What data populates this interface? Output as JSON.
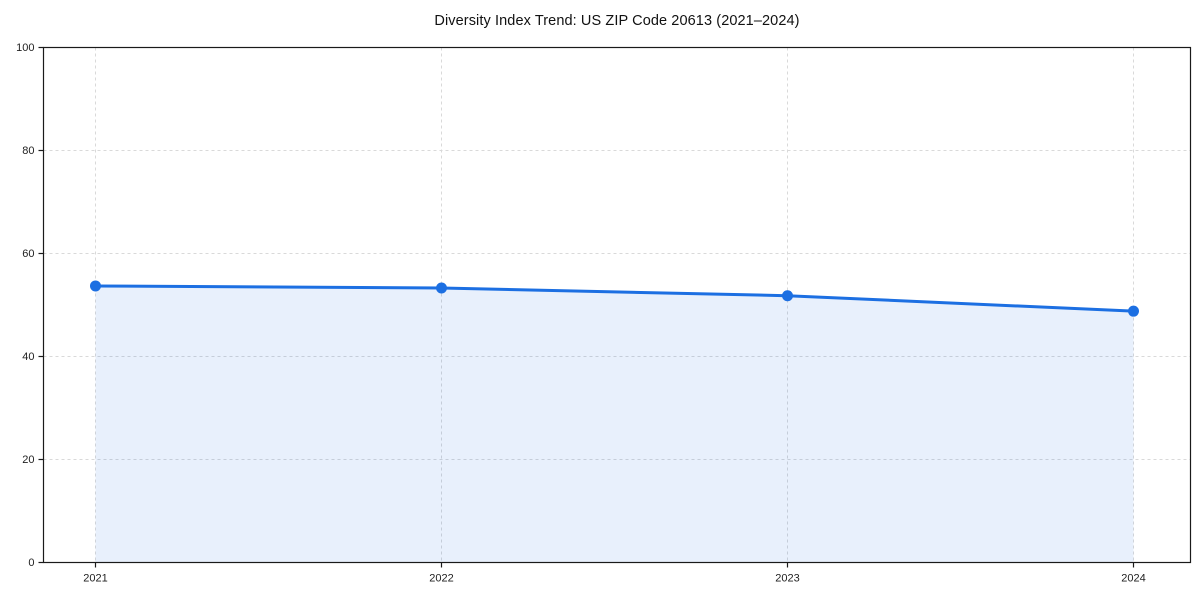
{
  "chart_data": {
    "type": "area",
    "title": "Diversity Index Trend: US ZIP Code 20613 (2021–2024)",
    "x": [
      "2021",
      "2022",
      "2023",
      "2024"
    ],
    "series": [
      {
        "name": "Diversity Index",
        "values": [
          53.7,
          53.3,
          51.8,
          48.8
        ]
      }
    ],
    "xlabel": "",
    "ylabel": "",
    "ylim": [
      0,
      100
    ],
    "yticks": [
      0,
      20,
      40,
      60,
      80,
      100
    ],
    "grid": true,
    "grid_style": "dashed",
    "legend": false,
    "colors": {
      "line": "#1c6fe2",
      "fill": "rgba(28, 111, 226, 0.10)",
      "marker": "#1c6fe2",
      "grid": "#d9d9d9",
      "spine": "#1a1a1a",
      "tick_label": "#222222",
      "title": "#111111"
    }
  }
}
